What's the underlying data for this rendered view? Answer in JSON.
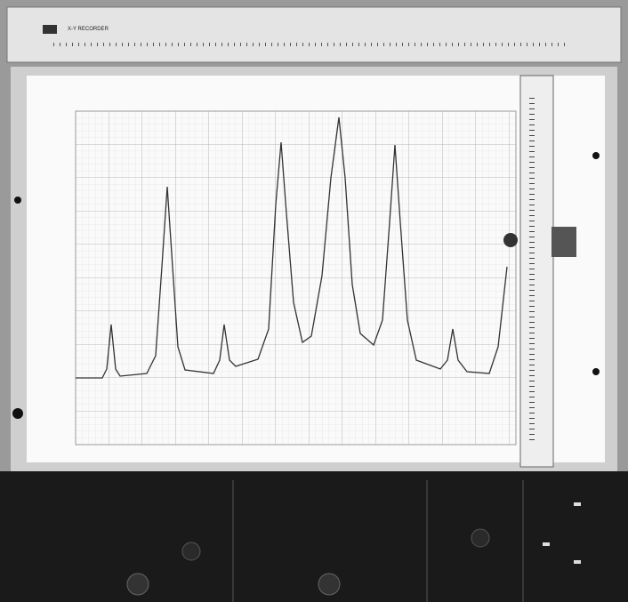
{
  "device": {
    "label": "X-Y RECORDER"
  }
}
